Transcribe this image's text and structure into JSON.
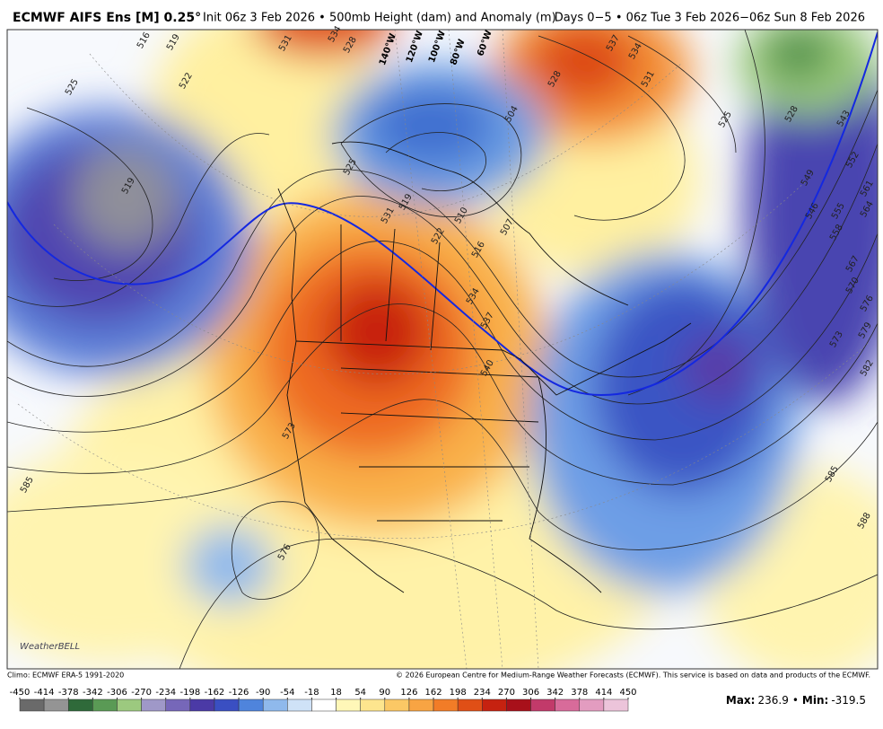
{
  "header": {
    "title": "ECMWF AIFS Ens [M] 0.25°",
    "subtitle": "Init 06z 3 Feb 2026 • 500mb Height (dam) and Anomaly (m)",
    "valid": "Days 0−5 • 06z Tue 3 Feb 2026−06z Sun 8 Feb 2026"
  },
  "map": {
    "longitude_labels": [
      "140°W",
      "120°W",
      "100°W",
      "80°W",
      "60°W"
    ],
    "contour_labels": [
      516,
      519,
      525,
      522,
      519,
      531,
      534,
      528,
      525,
      531,
      519,
      522,
      516,
      510,
      507,
      504,
      528,
      537,
      534,
      531,
      525,
      528,
      543,
      552,
      549,
      546,
      561,
      564,
      555,
      558,
      567,
      570,
      576,
      579,
      573,
      582,
      585,
      588,
      534,
      537,
      540,
      573,
      576,
      585
    ],
    "logo": "WeatherBELL"
  },
  "footer": {
    "climo": "Climo: ECMWF ERA-5 1991-2020",
    "copyright": "© 2026 European Centre for Medium-Range Weather Forecasts (ECMWF). This service is based on data and products of the ECMWF."
  },
  "colorbar": {
    "ticks": [
      -450,
      -414,
      -378,
      -342,
      -306,
      -270,
      -234,
      -198,
      -162,
      -126,
      -90,
      -54,
      -18,
      18,
      54,
      90,
      126,
      162,
      198,
      234,
      270,
      306,
      342,
      378,
      414,
      450
    ],
    "colors": [
      "#6a6a6a",
      "#949494",
      "#2f6a3a",
      "#5a9a55",
      "#9cc97f",
      "#9f98c8",
      "#7667b9",
      "#4b3aa6",
      "#3a4fc2",
      "#4f84dc",
      "#8fb9ec",
      "#cfe2f7",
      "#ffffff",
      "#fff7b8",
      "#fde58e",
      "#fbc865",
      "#f8a443",
      "#f27c27",
      "#e04f16",
      "#c62210",
      "#a8101a",
      "#c23a6a",
      "#d86b9a",
      "#e39cc0",
      "#ecc4da"
    ]
  },
  "stats": {
    "max_label": "Max:",
    "max": 236.9,
    "separator": "•",
    "min_label": "Min:",
    "min": -319.5
  }
}
